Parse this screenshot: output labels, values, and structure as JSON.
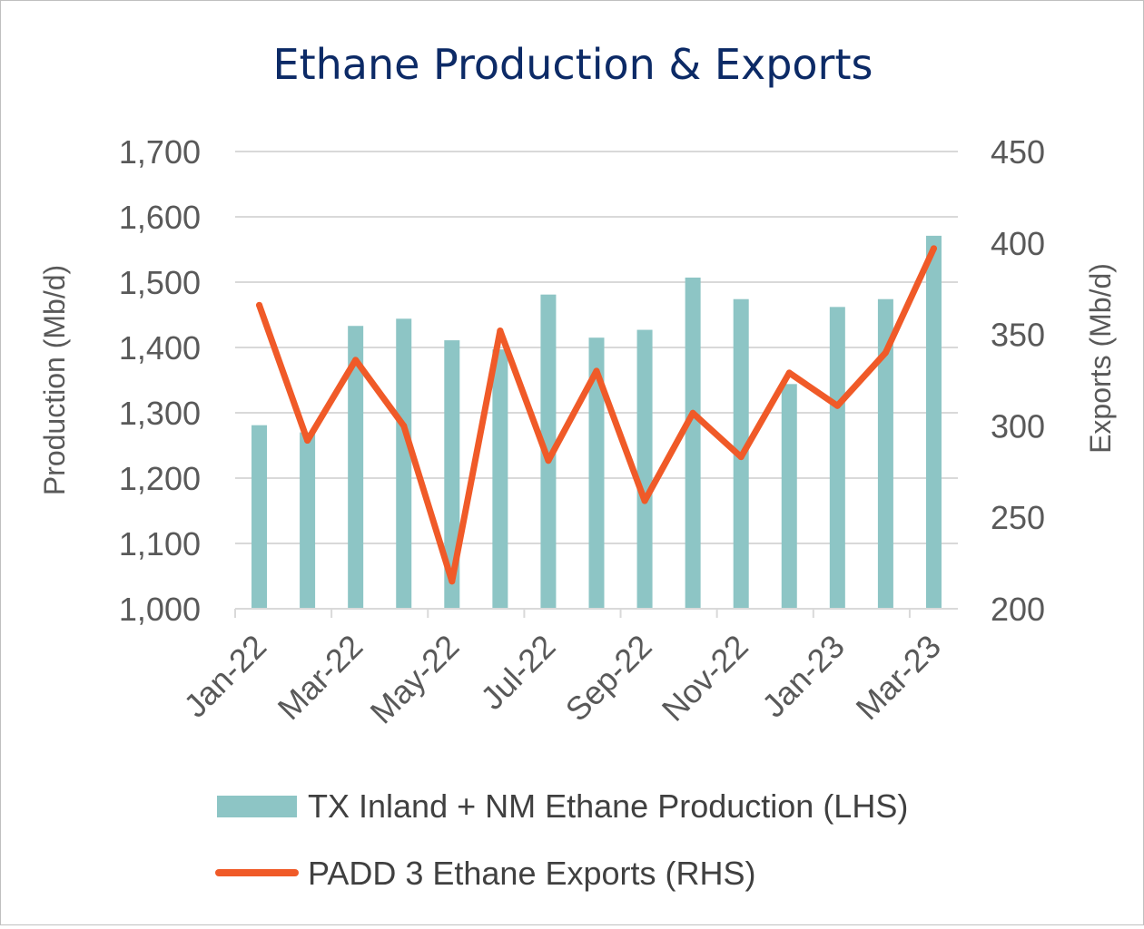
{
  "chart_data": {
    "type": "bar",
    "title": "Ethane Production & Exports",
    "ylabel": "Production (Mb/d)",
    "y2label": "Exports (Mb/d)",
    "ylim": [
      1000,
      1700
    ],
    "y2lim": [
      200,
      450
    ],
    "yticks": [
      "1,000",
      "1,100",
      "1,200",
      "1,300",
      "1,400",
      "1,500",
      "1,600",
      "1,700"
    ],
    "y2ticks": [
      "200",
      "250",
      "300",
      "350",
      "400",
      "450"
    ],
    "categories": [
      "Jan-22",
      "Feb-22",
      "Mar-22",
      "Apr-22",
      "May-22",
      "Jun-22",
      "Jul-22",
      "Aug-22",
      "Sep-22",
      "Oct-22",
      "Nov-22",
      "Dec-22",
      "Jan-23",
      "Feb-23",
      "Mar-23"
    ],
    "xtick_labels": [
      "Jan-22",
      "Mar-22",
      "May-22",
      "Jul-22",
      "Sep-22",
      "Nov-22",
      "Jan-23",
      "Mar-23"
    ],
    "series": [
      {
        "name": "TX Inland + NM Ethane Production (LHS)",
        "type": "bar",
        "axis": "left",
        "color": "#8dc5c5",
        "values": [
          1281,
          1270,
          1433,
          1444,
          1411,
          1397,
          1481,
          1415,
          1427,
          1507,
          1474,
          1344,
          1462,
          1474,
          1571
        ]
      },
      {
        "name": "PADD 3 Ethane Exports (RHS)",
        "type": "line",
        "axis": "right",
        "color": "#f05a28",
        "values": [
          366,
          292,
          336,
          300,
          215,
          352,
          281,
          330,
          259,
          307,
          283,
          329,
          311,
          340,
          397
        ]
      }
    ],
    "gridlines": true,
    "legend_position": "bottom",
    "title_color": "#0c2a66",
    "grid_color": "#d9d9d9",
    "axis_color": "#d9d9d9"
  }
}
